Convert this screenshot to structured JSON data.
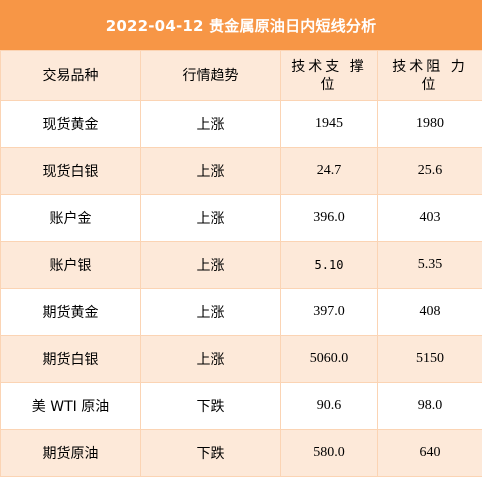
{
  "title": "2022-04-12 贵金属原油日内短线分析",
  "headers": {
    "instrument": "交易品种",
    "trend": "行情趋势",
    "support": "技术支 撑 位",
    "resistance": "技术阻 力 位"
  },
  "rows": [
    {
      "instrument": "现货黄金",
      "trend": "上涨",
      "support": "1945",
      "resistance": "1980"
    },
    {
      "instrument": "现货白银",
      "trend": "上涨",
      "support": "24.7",
      "resistance": "25.6"
    },
    {
      "instrument": "账户金",
      "trend": "上涨",
      "support": "396.0",
      "resistance": "403"
    },
    {
      "instrument": "账户银",
      "trend": "上涨",
      "support": "5.10",
      "resistance": "5.35"
    },
    {
      "instrument": "期货黄金",
      "trend": "上涨",
      "support": "397.0",
      "resistance": "408"
    },
    {
      "instrument": "期货白银",
      "trend": "上涨",
      "support": "5060.0",
      "resistance": "5150"
    },
    {
      "instrument": "美 WTI 原油",
      "trend": "下跌",
      "support": "90.6",
      "resistance": "98.0"
    },
    {
      "instrument": "期货原油",
      "trend": "下跌",
      "support": "580.0",
      "resistance": "640"
    }
  ],
  "colors": {
    "title_background": "#f79646",
    "title_text": "#ffffff",
    "band_row": "#fde9d9",
    "plain_row": "#ffffff",
    "border": "#fbd4b4"
  }
}
